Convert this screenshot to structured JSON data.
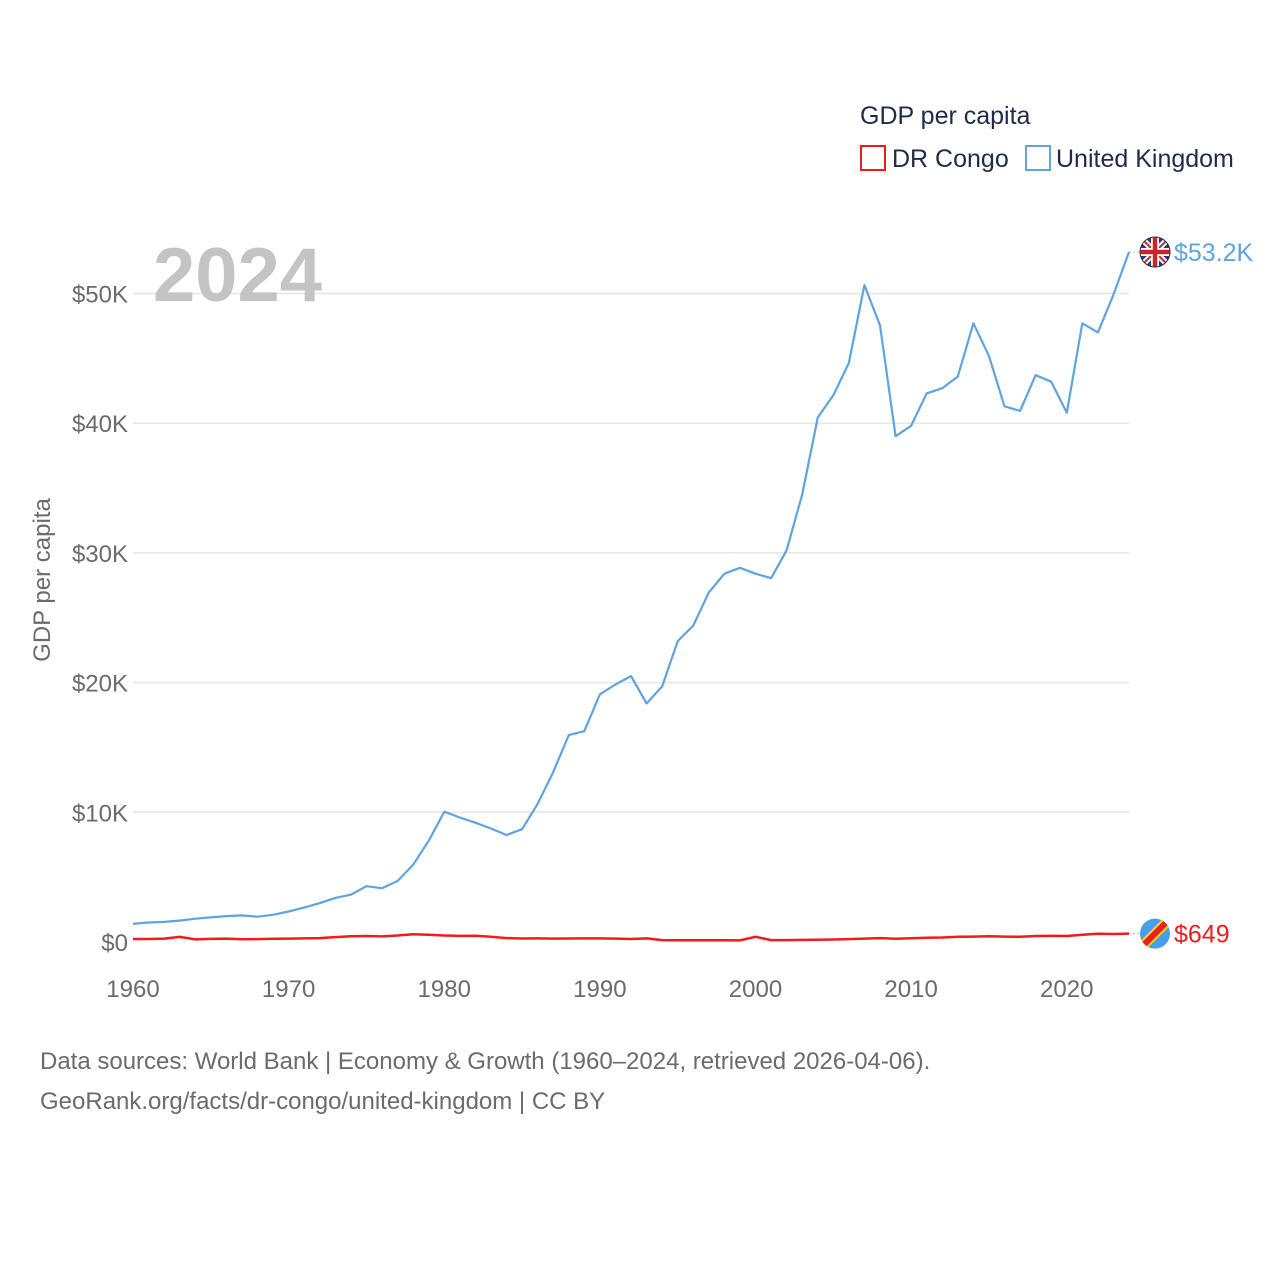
{
  "chart_data": {
    "type": "line",
    "title": "GDP per capita",
    "ylabel": "GDP per capita",
    "xlabel": "",
    "year_watermark": "2024",
    "xlim": [
      1960,
      2024
    ],
    "ylim": [
      0,
      55000
    ],
    "x_ticks": [
      1960,
      1970,
      1980,
      1990,
      2000,
      2010,
      2020
    ],
    "x_tick_labels": [
      "1960",
      "1970",
      "1980",
      "1990",
      "2000",
      "2010",
      "2020"
    ],
    "y_ticks": [
      0,
      10000,
      20000,
      30000,
      40000,
      50000
    ],
    "y_tick_labels": [
      "$0",
      "$10K",
      "$20K",
      "$30K",
      "$40K",
      "$50K"
    ],
    "legend_title": "GDP per capita",
    "legend_position": "top-right",
    "x": [
      1960,
      1961,
      1962,
      1963,
      1964,
      1965,
      1966,
      1967,
      1968,
      1969,
      1970,
      1971,
      1972,
      1973,
      1974,
      1975,
      1976,
      1977,
      1978,
      1979,
      1980,
      1981,
      1982,
      1983,
      1984,
      1985,
      1986,
      1987,
      1988,
      1989,
      1990,
      1991,
      1992,
      1993,
      1994,
      1995,
      1996,
      1997,
      1998,
      1999,
      2000,
      2001,
      2002,
      2003,
      2004,
      2005,
      2006,
      2007,
      2008,
      2009,
      2010,
      2011,
      2012,
      2013,
      2014,
      2015,
      2016,
      2017,
      2018,
      2019,
      2020,
      2021,
      2022,
      2023,
      2024
    ],
    "series": [
      {
        "name": "DR Congo",
        "color": "#ee1c1c",
        "end_label": "$649",
        "icon": "dr-congo-flag-icon",
        "values": [
          230,
          230,
          260,
          390,
          200,
          240,
          260,
          210,
          220,
          250,
          260,
          280,
          300,
          380,
          440,
          460,
          430,
          500,
          600,
          560,
          500,
          470,
          480,
          410,
          300,
          270,
          280,
          260,
          270,
          280,
          280,
          260,
          230,
          280,
          150,
          140,
          140,
          140,
          130,
          120,
          400,
          150,
          150,
          160,
          170,
          190,
          220,
          260,
          300,
          250,
          290,
          320,
          350,
          400,
          420,
          440,
          420,
          400,
          460,
          470,
          460,
          560,
          640,
          620,
          649
        ]
      },
      {
        "name": "United Kingdom",
        "color": "#5fa3e0",
        "end_label": "$53.2K",
        "icon": "united-kingdom-flag-icon",
        "values": [
          1400,
          1500,
          1550,
          1650,
          1800,
          1900,
          2000,
          2050,
          1950,
          2100,
          2350,
          2650,
          3000,
          3400,
          3650,
          4300,
          4150,
          4700,
          5950,
          7800,
          10050,
          9600,
          9200,
          8750,
          8250,
          8700,
          10650,
          13100,
          15950,
          16250,
          19100,
          19850,
          20500,
          18400,
          19700,
          23200,
          24400,
          26950,
          28400,
          28850,
          28400,
          28050,
          30200,
          34500,
          40450,
          42150,
          44650,
          50650,
          47550,
          39000,
          39800,
          42300,
          42700,
          43600,
          47700,
          45200,
          41300,
          40950,
          43700,
          43200,
          40800,
          47700,
          47000,
          49900,
          53200
        ]
      }
    ]
  },
  "footer": {
    "line1": "Data sources: World Bank | Economy & Growth (1960–2024, retrieved 2026-04-06).",
    "line2": "GeoRank.org/facts/dr-congo/united-kingdom | CC BY"
  }
}
